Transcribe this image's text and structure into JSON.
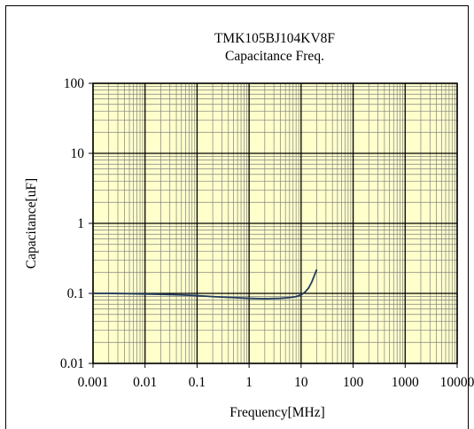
{
  "chart_data": {
    "type": "line",
    "title": "TMK105BJ104KV8F",
    "subtitle": "Capacitance Freq.",
    "xlabel": "Frequency[MHz]",
    "ylabel": "Capacitance[uF]",
    "x_scale": "log",
    "y_scale": "log",
    "xlim": [
      0.001,
      10000
    ],
    "ylim": [
      0.01,
      100
    ],
    "x_ticks": [
      "0.001",
      "0.01",
      "0.1",
      "1",
      "10",
      "100",
      "1000",
      "10000"
    ],
    "y_ticks": [
      "100",
      "10",
      "1",
      "0.1",
      "0.01"
    ],
    "grid": true,
    "plot_background": "#ffffcc",
    "grid_color": "#808080",
    "major_grid_color": "#000000",
    "series": [
      {
        "color": "#1f3a5f",
        "x": [
          0.001,
          0.002,
          0.005,
          0.01,
          0.02,
          0.05,
          0.1,
          0.2,
          0.5,
          1,
          2,
          4,
          6,
          8,
          10,
          12,
          14,
          16,
          18,
          20
        ],
        "y": [
          0.1,
          0.1,
          0.099,
          0.098,
          0.097,
          0.095,
          0.093,
          0.09,
          0.087,
          0.085,
          0.084,
          0.085,
          0.087,
          0.09,
          0.095,
          0.105,
          0.12,
          0.145,
          0.18,
          0.22
        ]
      }
    ]
  }
}
